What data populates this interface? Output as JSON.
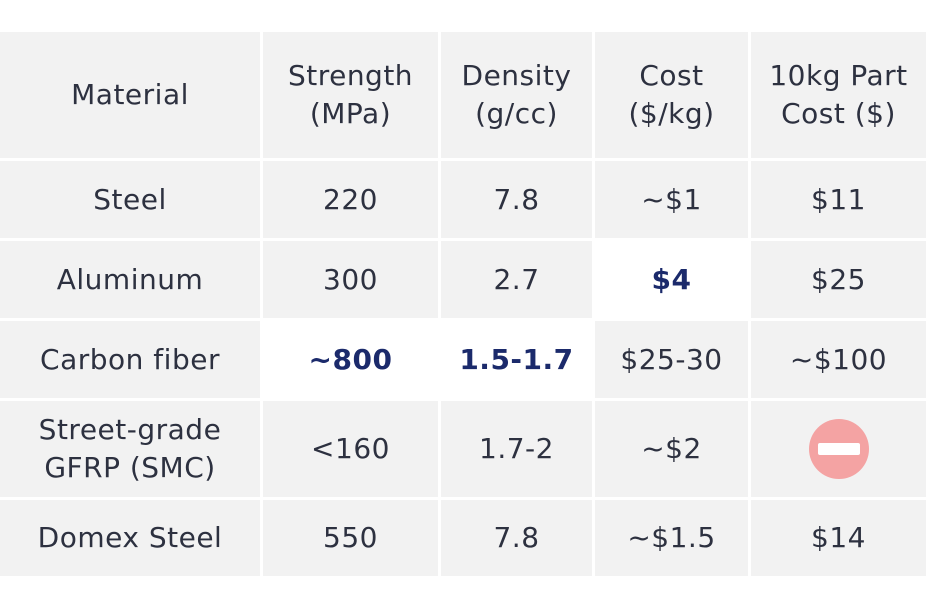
{
  "table": {
    "header": [
      [
        "Material"
      ],
      [
        "Strength",
        "(MPa)"
      ],
      [
        "Density",
        "(g/cc)"
      ],
      [
        "Cost",
        "($/kg)"
      ],
      [
        "10kg Part",
        "Cost ($)"
      ]
    ],
    "rows": [
      [
        [
          "Steel"
        ],
        [
          "220"
        ],
        [
          "7.8"
        ],
        [
          "~$1"
        ],
        [
          "$11"
        ]
      ],
      [
        [
          "Aluminum"
        ],
        [
          "300"
        ],
        [
          "2.7"
        ],
        [
          "$4"
        ],
        [
          "$25"
        ]
      ],
      [
        [
          "Carbon fiber"
        ],
        [
          "~800"
        ],
        [
          "1.5-1.7"
        ],
        [
          "$25-30"
        ],
        [
          "~$100"
        ]
      ],
      [
        [
          "Street-grade",
          "GFRP (SMC)"
        ],
        [
          "<160"
        ],
        [
          "1.7-2"
        ],
        [
          "~$2"
        ],
        []
      ],
      [
        [
          "Domex Steel"
        ],
        [
          "550"
        ],
        [
          "7.8"
        ],
        [
          "~$1.5"
        ],
        [
          "$14"
        ]
      ]
    ]
  }
}
